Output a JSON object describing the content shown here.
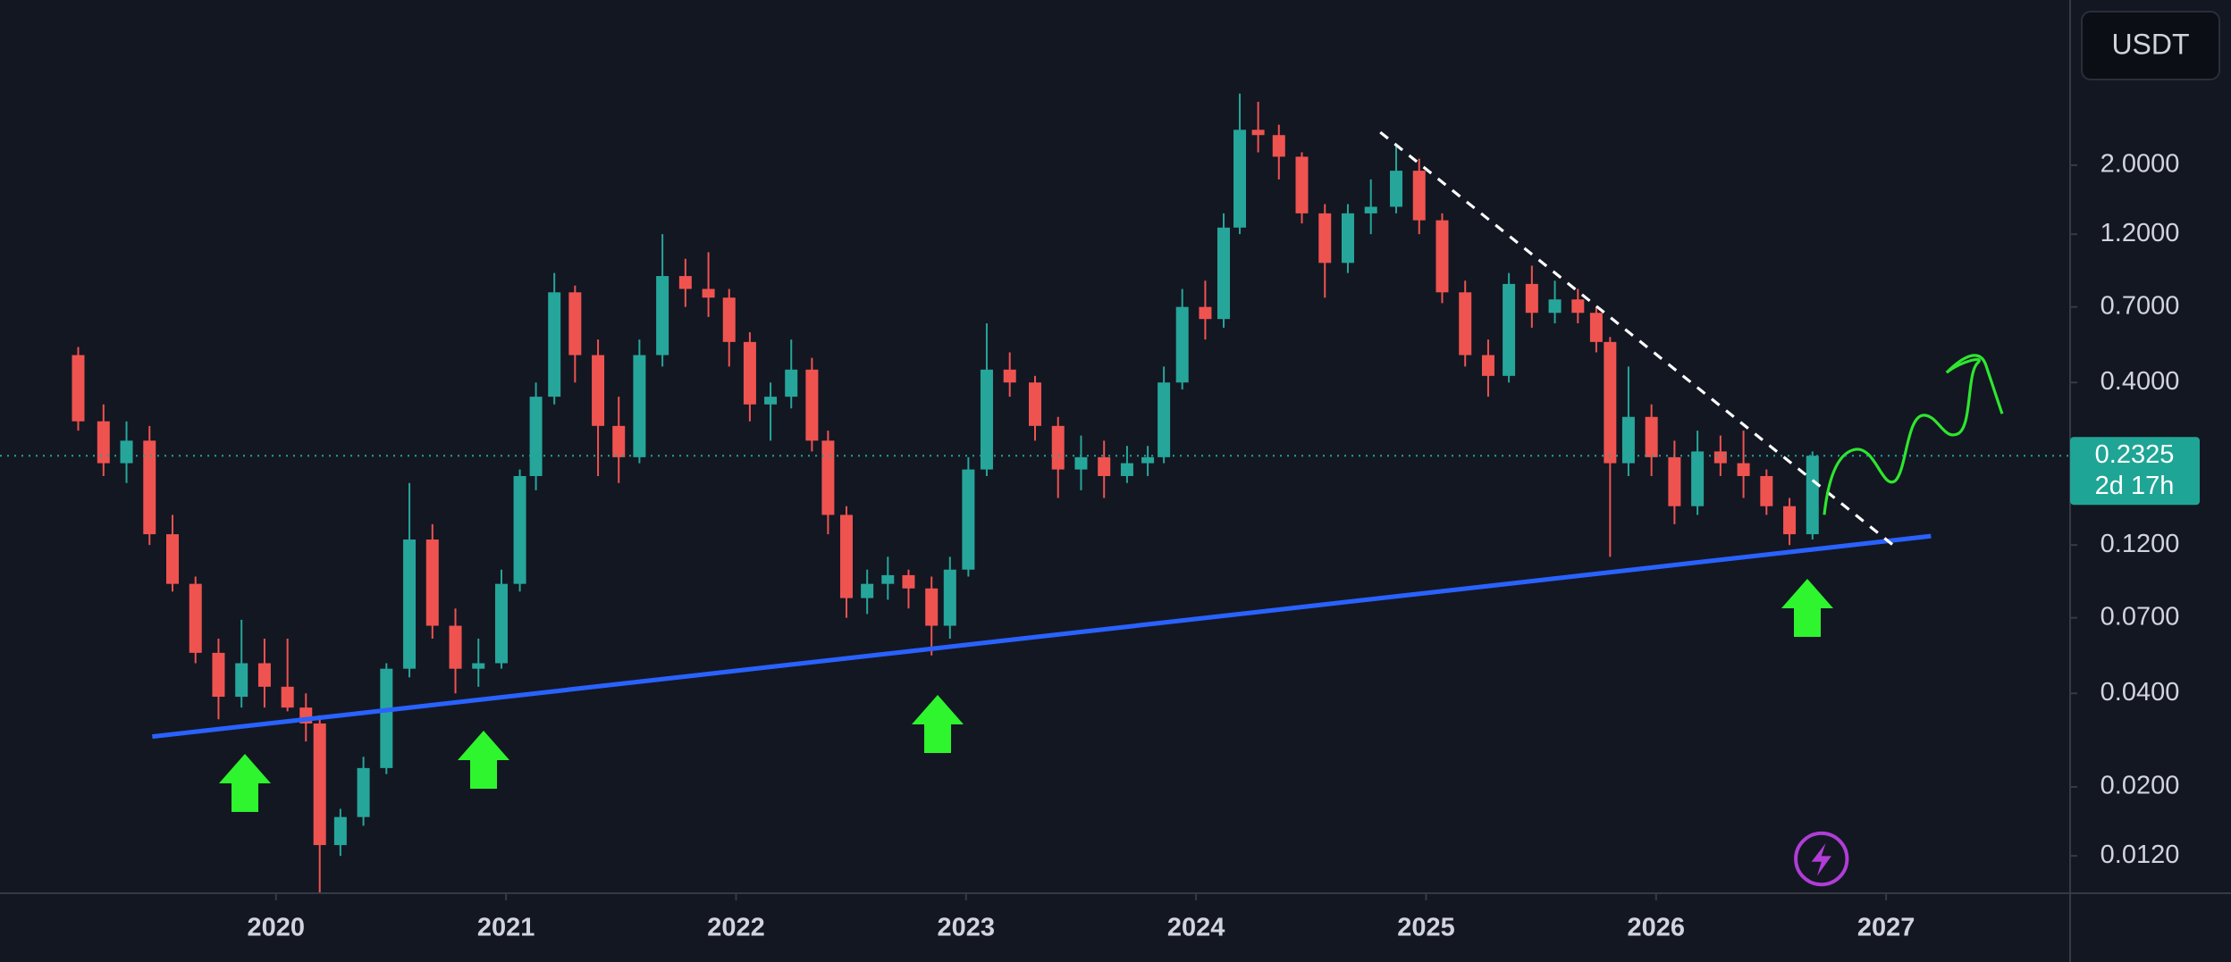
{
  "chart_data": {
    "type": "candlestick",
    "currency": "USDT",
    "log_scale": true,
    "up_color": "#26a69a",
    "down_color": "#ef5350",
    "x": [
      2019.14,
      2019.25,
      2019.35,
      2019.45,
      2019.55,
      2019.65,
      2019.75,
      2019.85,
      2019.95,
      2020.05,
      2020.13,
      2020.19,
      2020.28,
      2020.38,
      2020.48,
      2020.58,
      2020.68,
      2020.78,
      2020.88,
      2020.98,
      2021.06,
      2021.13,
      2021.21,
      2021.3,
      2021.4,
      2021.49,
      2021.58,
      2021.68,
      2021.78,
      2021.88,
      2021.97,
      2022.06,
      2022.15,
      2022.24,
      2022.33,
      2022.4,
      2022.48,
      2022.57,
      2022.66,
      2022.75,
      2022.85,
      2022.93,
      2023.01,
      2023.09,
      2023.19,
      2023.3,
      2023.4,
      2023.5,
      2023.6,
      2023.7,
      2023.79,
      2023.86,
      2023.94,
      2024.04,
      2024.12,
      2024.19,
      2024.27,
      2024.36,
      2024.46,
      2024.56,
      2024.66,
      2024.76,
      2024.87,
      2024.97,
      2025.07,
      2025.17,
      2025.27,
      2025.36,
      2025.46,
      2025.56,
      2025.66,
      2025.74,
      2025.8,
      2025.88,
      2025.98,
      2026.08,
      2026.18,
      2026.28,
      2026.38,
      2026.48,
      2026.58,
      2026.68
    ],
    "open": [
      0.49,
      0.3,
      0.22,
      0.26,
      0.13,
      0.09,
      0.054,
      0.039,
      0.05,
      0.042,
      0.036,
      0.032,
      0.013,
      0.016,
      0.023,
      0.048,
      0.125,
      0.066,
      0.048,
      0.05,
      0.09,
      0.2,
      0.36,
      0.78,
      0.49,
      0.29,
      0.23,
      0.49,
      0.88,
      0.8,
      0.75,
      0.54,
      0.34,
      0.36,
      0.44,
      0.26,
      0.15,
      0.081,
      0.09,
      0.096,
      0.087,
      0.066,
      0.1,
      0.21,
      0.44,
      0.4,
      0.29,
      0.21,
      0.23,
      0.2,
      0.22,
      0.23,
      0.4,
      0.7,
      0.64,
      1.26,
      2.6,
      2.5,
      2.13,
      1.4,
      0.97,
      1.4,
      1.47,
      1.92,
      1.33,
      0.78,
      0.49,
      0.42,
      0.83,
      0.67,
      0.74,
      0.67,
      0.54,
      0.22,
      0.31,
      0.23,
      0.16,
      0.24,
      0.22,
      0.2,
      0.16,
      0.13
    ],
    "high": [
      0.52,
      0.34,
      0.3,
      0.29,
      0.15,
      0.095,
      0.06,
      0.069,
      0.06,
      0.06,
      0.04,
      0.034,
      0.017,
      0.025,
      0.05,
      0.19,
      0.14,
      0.075,
      0.06,
      0.1,
      0.21,
      0.4,
      0.9,
      0.82,
      0.55,
      0.36,
      0.55,
      1.2,
      1.0,
      1.05,
      0.8,
      0.58,
      0.4,
      0.55,
      0.48,
      0.28,
      0.16,
      0.1,
      0.11,
      0.1,
      0.095,
      0.11,
      0.23,
      0.62,
      0.5,
      0.42,
      0.31,
      0.27,
      0.26,
      0.25,
      0.25,
      0.45,
      0.8,
      0.85,
      1.4,
      3.4,
      3.2,
      2.7,
      2.2,
      1.5,
      1.5,
      1.8,
      2.3,
      2.1,
      1.4,
      0.85,
      0.55,
      0.9,
      0.95,
      0.85,
      0.8,
      0.7,
      0.56,
      0.45,
      0.34,
      0.26,
      0.28,
      0.27,
      0.28,
      0.21,
      0.17,
      0.24
    ],
    "low": [
      0.28,
      0.2,
      0.19,
      0.12,
      0.085,
      0.05,
      0.033,
      0.036,
      0.036,
      0.035,
      0.028,
      0.0091,
      0.012,
      0.015,
      0.022,
      0.045,
      0.06,
      0.04,
      0.042,
      0.048,
      0.085,
      0.18,
      0.34,
      0.4,
      0.2,
      0.19,
      0.22,
      0.45,
      0.7,
      0.65,
      0.45,
      0.3,
      0.26,
      0.33,
      0.24,
      0.13,
      0.07,
      0.072,
      0.08,
      0.075,
      0.053,
      0.06,
      0.095,
      0.2,
      0.36,
      0.26,
      0.17,
      0.18,
      0.17,
      0.19,
      0.2,
      0.22,
      0.38,
      0.55,
      0.6,
      1.2,
      2.2,
      1.8,
      1.3,
      0.75,
      0.9,
      1.2,
      1.4,
      1.2,
      0.72,
      0.45,
      0.36,
      0.4,
      0.6,
      0.62,
      0.62,
      0.5,
      0.11,
      0.2,
      0.2,
      0.14,
      0.15,
      0.2,
      0.17,
      0.15,
      0.12,
      0.125
    ],
    "close": [
      0.3,
      0.22,
      0.26,
      0.13,
      0.09,
      0.054,
      0.039,
      0.05,
      0.042,
      0.036,
      0.032,
      0.013,
      0.016,
      0.023,
      0.048,
      0.125,
      0.066,
      0.048,
      0.05,
      0.09,
      0.2,
      0.36,
      0.78,
      0.49,
      0.29,
      0.23,
      0.49,
      0.88,
      0.8,
      0.75,
      0.54,
      0.34,
      0.36,
      0.44,
      0.26,
      0.15,
      0.081,
      0.09,
      0.096,
      0.087,
      0.066,
      0.1,
      0.21,
      0.44,
      0.4,
      0.29,
      0.21,
      0.23,
      0.2,
      0.22,
      0.23,
      0.4,
      0.7,
      0.64,
      1.26,
      2.6,
      2.5,
      2.13,
      1.4,
      0.97,
      1.4,
      1.47,
      1.92,
      1.33,
      0.78,
      0.49,
      0.42,
      0.83,
      0.67,
      0.74,
      0.67,
      0.54,
      0.22,
      0.31,
      0.23,
      0.16,
      0.24,
      0.22,
      0.2,
      0.16,
      0.13,
      0.2325
    ],
    "last_price": 0.2325,
    "countdown": "2d 17h",
    "last_price_color": "#1fa595",
    "xlim": [
      2018.8,
      2027.8
    ],
    "xticks": [
      2020,
      2021,
      2022,
      2023,
      2024,
      2025,
      2026,
      2027
    ],
    "ylim": [
      0.0091,
      6.8
    ],
    "yticks": [
      {
        "value": 0.012,
        "label": "0.0120"
      },
      {
        "value": 0.02,
        "label": "0.0200"
      },
      {
        "value": 0.04,
        "label": "0.0400"
      },
      {
        "value": 0.07,
        "label": "0.0700"
      },
      {
        "value": 0.12,
        "label": "0.1200"
      },
      {
        "value": 0.4,
        "label": "0.4000"
      },
      {
        "value": 0.7,
        "label": "0.7000"
      },
      {
        "value": 1.2,
        "label": "1.2000"
      },
      {
        "value": 2.0,
        "label": "2.0000"
      }
    ]
  }
}
